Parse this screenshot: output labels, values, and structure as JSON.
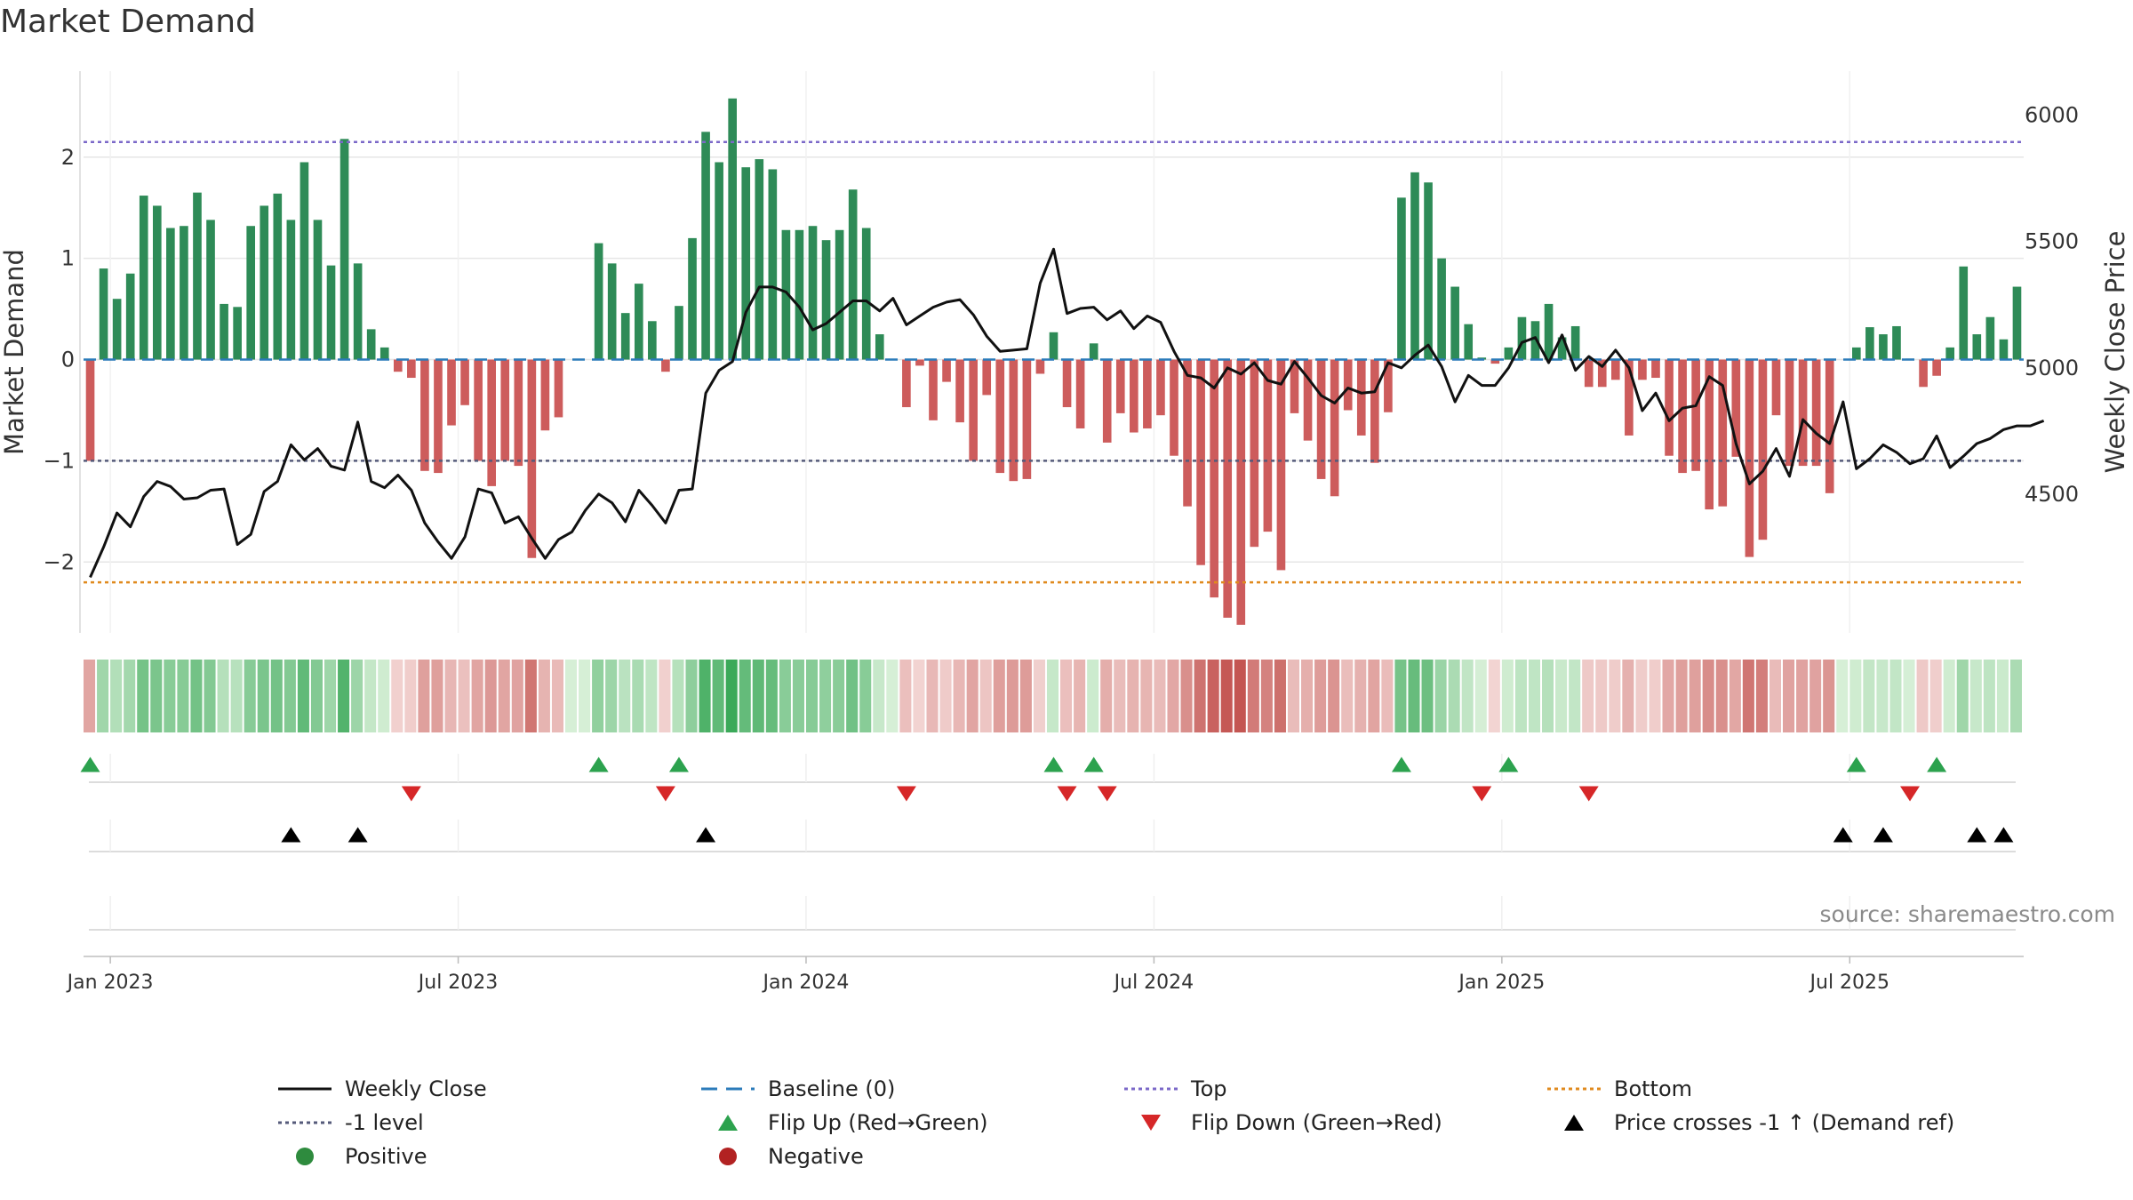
{
  "chart_data": {
    "type": "bar",
    "title": "Market Demand",
    "source": "source: sharemaestro.com",
    "ylabel_left": "Market Demand",
    "ylabel_right": "Weekly Close Price",
    "ylim_left": [
      -2.7,
      2.85
    ],
    "ylim_right": [
      3950,
      6175
    ],
    "yticks_left": [
      2,
      1,
      0,
      -1,
      -2
    ],
    "ytick_labels_left": [
      "2",
      "1",
      "0",
      "−1",
      "−2"
    ],
    "yticks_right": [
      6000,
      5500,
      5000,
      4500
    ],
    "ytick_labels_right": [
      "6000",
      "5500",
      "5000",
      "4500"
    ],
    "xticks": [
      "Jan 2023",
      "Jul 2023",
      "Jan 2024",
      "Jul 2024",
      "Jan 2025",
      "Jul 2025"
    ],
    "xtick_weeks": [
      1.5,
      27.5,
      53.5,
      79.5,
      105.5,
      131.5
    ],
    "reference_lines": {
      "top": 2.15,
      "bottom": -2.2,
      "minus_one": -1.0,
      "baseline": 0
    },
    "demand": [
      -1.0,
      0.9,
      0.6,
      0.85,
      1.62,
      1.52,
      1.3,
      1.32,
      1.65,
      1.38,
      0.55,
      0.52,
      1.32,
      1.52,
      1.64,
      1.38,
      1.95,
      1.38,
      0.93,
      2.18,
      0.95,
      0.3,
      0.12,
      -0.12,
      -0.18,
      -1.1,
      -1.12,
      -0.65,
      -0.45,
      -1.0,
      -1.25,
      -1.0,
      -1.05,
      -1.96,
      -0.7,
      -0.57,
      0,
      0,
      1.15,
      0.95,
      0.46,
      0.75,
      0.38,
      -0.12,
      0.53,
      1.2,
      2.25,
      1.95,
      2.58,
      1.9,
      1.98,
      1.88,
      1.28,
      1.28,
      1.32,
      1.18,
      1.28,
      1.68,
      1.3,
      0.25,
      0,
      -0.47,
      -0.06,
      -0.6,
      -0.22,
      -0.62,
      -1.0,
      -0.35,
      -1.12,
      -1.2,
      -1.18,
      -0.14,
      0.27,
      -0.47,
      -0.68,
      0.16,
      -0.82,
      -0.53,
      -0.72,
      -0.68,
      -0.55,
      -0.95,
      -1.45,
      -2.03,
      -2.35,
      -2.55,
      -2.62,
      -1.85,
      -1.7,
      -2.08,
      -0.53,
      -0.8,
      -1.18,
      -1.35,
      -0.5,
      -0.75,
      -1.02,
      -0.52,
      1.6,
      1.85,
      1.75,
      1.0,
      0.72,
      0.35,
      0.02,
      -0.04,
      0.12,
      0.42,
      0.38,
      0.55,
      0.22,
      0.33,
      -0.27,
      -0.27,
      -0.2,
      -0.75,
      -0.2,
      -0.18,
      -0.95,
      -1.12,
      -1.1,
      -1.48,
      -1.45,
      -0.96,
      -1.95,
      -1.78,
      -0.55,
      -1.05,
      -1.05,
      -1.05,
      -1.32,
      0,
      0.12,
      0.32,
      0.25,
      0.33,
      0.01,
      -0.27,
      -0.16,
      0.12,
      0.92,
      0.25,
      0.42,
      0.2,
      0.72
    ],
    "price": [
      4170,
      4290,
      4425,
      4370,
      4490,
      4550,
      4530,
      4480,
      4485,
      4515,
      4520,
      4300,
      4340,
      4510,
      4550,
      4695,
      4635,
      4680,
      4610,
      4595,
      4785,
      4550,
      4525,
      4575,
      4515,
      4385,
      4310,
      4245,
      4330,
      4520,
      4505,
      4385,
      4410,
      4325,
      4245,
      4320,
      4350,
      4435,
      4500,
      4465,
      4390,
      4515,
      4455,
      4385,
      4515,
      4520,
      4900,
      4990,
      5025,
      5220,
      5320,
      5320,
      5300,
      5240,
      5150,
      5175,
      5220,
      5265,
      5265,
      5225,
      5275,
      5170,
      5205,
      5240,
      5260,
      5270,
      5210,
      5125,
      5065,
      5070,
      5075,
      5335,
      5470,
      5215,
      5235,
      5240,
      5190,
      5225,
      5155,
      5205,
      5180,
      5065,
      4970,
      4960,
      4920,
      5000,
      4975,
      5020,
      4950,
      4935,
      5025,
      4960,
      4890,
      4860,
      4920,
      4900,
      4905,
      5020,
      5000,
      5050,
      5090,
      5005,
      4865,
      4970,
      4930,
      4930,
      5000,
      5100,
      5120,
      5020,
      5130,
      4990,
      5045,
      5005,
      5070,
      5000,
      4830,
      4900,
      4790,
      4840,
      4850,
      4965,
      4930,
      4700,
      4540,
      4590,
      4680,
      4570,
      4795,
      4740,
      4700,
      4865,
      4600,
      4640,
      4695,
      4665,
      4620,
      4640,
      4730,
      4605,
      4650,
      4700,
      4720,
      4755,
      4770,
      4770,
      4790
    ],
    "heatmap_strip": "diverging colour tiles by weekly demand (green positive, red negative)",
    "markers": {
      "flip_up_weeks": [
        0,
        38,
        44,
        72,
        75,
        98,
        106,
        132,
        138
      ],
      "flip_down_weeks": [
        24,
        43,
        61,
        73,
        76,
        104,
        112,
        136
      ],
      "price_cross_up_weeks": [
        15,
        20,
        46,
        131,
        134,
        141,
        143
      ]
    },
    "legend": [
      {
        "label": "Weekly Close",
        "symbol": "line",
        "color": "#111111"
      },
      {
        "label": "Baseline (0)",
        "symbol": "dash",
        "color": "#2b7bba"
      },
      {
        "label": "Top",
        "symbol": "dot",
        "color": "#7b68c8"
      },
      {
        "label": "Bottom",
        "symbol": "dot",
        "color": "#e08a1e"
      },
      {
        "label": "-1 level",
        "symbol": "dot",
        "color": "#555a7a"
      },
      {
        "label": "Flip Up (Red→Green)",
        "symbol": "tri-up",
        "color": "#2ca24e"
      },
      {
        "label": "Flip Down (Green→Red)",
        "symbol": "tri-down",
        "color": "#d62728"
      },
      {
        "label": "Price crosses -1 ↑ (Demand ref)",
        "symbol": "tri-up",
        "color": "#000000"
      },
      {
        "label": "Positive",
        "symbol": "circle",
        "color": "#2e8b3e"
      },
      {
        "label": "Negative",
        "symbol": "circle",
        "color": "#b22222"
      }
    ]
  },
  "colors": {
    "positive_bar": "#2e8b57",
    "negative_bar": "#cd5c5c",
    "price_line": "#111111",
    "top_line": "#7b68c8",
    "bottom_line": "#e08a1e",
    "minus_one_line": "#555a7a",
    "baseline": "#2b7bba",
    "grid": "#e6e6e6"
  }
}
